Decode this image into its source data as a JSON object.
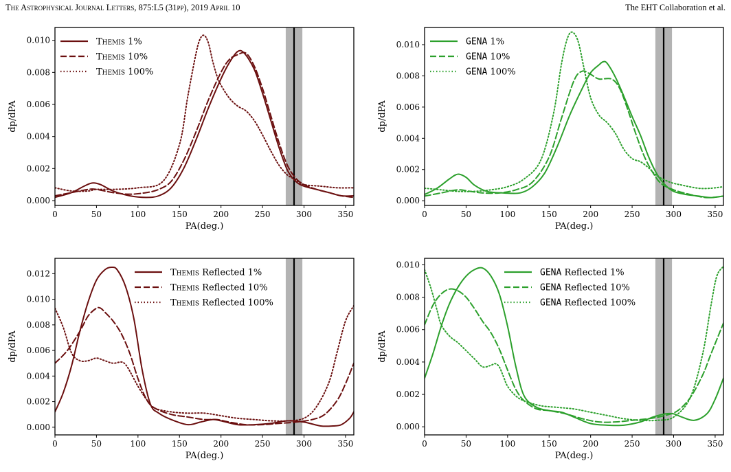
{
  "header": {
    "left": "The Astrophysical Journal Letters, 875:L5 (31pp), 2019 April 10",
    "right": "The EHT Collaboration et al."
  },
  "colors": {
    "themis": "#6b0f0f",
    "gena": "#2ca02c",
    "band": "#b3b3b3",
    "line": "#000000"
  },
  "chart_data": [
    {
      "type": "line",
      "panel": "top-left",
      "xlabel": "PA(deg.)",
      "ylabel": "dp/dPA",
      "xlim": [
        0,
        360
      ],
      "ylim": [
        -0.0003,
        0.0108
      ],
      "xticks": [
        "0",
        "50",
        "100",
        "150",
        "200",
        "250",
        "300",
        "350"
      ],
      "xtick_values": [
        0,
        50,
        100,
        150,
        200,
        250,
        300,
        350
      ],
      "yticks": [
        "0.000",
        "0.002",
        "0.004",
        "0.006",
        "0.008",
        "0.010"
      ],
      "ytick_values": [
        0,
        0.002,
        0.004,
        0.006,
        0.008,
        0.01
      ],
      "band": [
        278,
        298
      ],
      "vline": 288,
      "legend_position": "top-left",
      "series": [
        {
          "name": "Themis 1%",
          "prefix": "Themis",
          "suffix": " 1%",
          "style": "solid",
          "color": "#6b0f0f",
          "x": [
            0,
            20,
            35,
            45,
            55,
            70,
            90,
            110,
            125,
            140,
            155,
            170,
            185,
            200,
            210,
            220,
            228,
            240,
            250,
            260,
            270,
            280,
            290,
            300,
            315,
            330,
            345,
            360
          ],
          "y": [
            0.0002,
            0.0005,
            0.0009,
            0.0011,
            0.001,
            0.0006,
            0.0003,
            0.0002,
            0.0003,
            0.0008,
            0.002,
            0.0038,
            0.0058,
            0.0076,
            0.0086,
            0.0093,
            0.0092,
            0.0082,
            0.0067,
            0.005,
            0.0033,
            0.0019,
            0.0012,
            0.0009,
            0.0007,
            0.0005,
            0.0003,
            0.0003
          ]
        },
        {
          "name": "Themis 10%",
          "prefix": "Themis",
          "suffix": " 10%",
          "style": "dashed",
          "color": "#6b0f0f",
          "x": [
            0,
            20,
            40,
            50,
            70,
            90,
            110,
            125,
            140,
            155,
            170,
            185,
            200,
            210,
            220,
            230,
            240,
            250,
            260,
            270,
            280,
            290,
            300,
            315,
            330,
            345,
            360
          ],
          "y": [
            0.0003,
            0.0005,
            0.0007,
            0.0007,
            0.0005,
            0.0004,
            0.0005,
            0.0007,
            0.0012,
            0.0025,
            0.0043,
            0.0063,
            0.008,
            0.0088,
            0.0091,
            0.0092,
            0.0084,
            0.007,
            0.0053,
            0.0036,
            0.0022,
            0.0014,
            0.001,
            0.0007,
            0.0005,
            0.0003,
            0.0002
          ]
        },
        {
          "name": "Themis 100%",
          "prefix": "Themis",
          "suffix": " 100%",
          "style": "dotted",
          "color": "#6b0f0f",
          "x": [
            0,
            20,
            40,
            50,
            70,
            100,
            130,
            150,
            160,
            170,
            175,
            180,
            185,
            190,
            195,
            200,
            210,
            220,
            230,
            240,
            250,
            260,
            270,
            280,
            290,
            300,
            320,
            340,
            360
          ],
          "y": [
            0.0008,
            0.0006,
            0.0006,
            0.0007,
            0.0007,
            0.0008,
            0.0012,
            0.0035,
            0.0065,
            0.0092,
            0.0101,
            0.0103,
            0.0098,
            0.0087,
            0.0078,
            0.0072,
            0.0064,
            0.0059,
            0.0056,
            0.005,
            0.0041,
            0.0031,
            0.0022,
            0.0016,
            0.0013,
            0.001,
            0.0009,
            0.0008,
            0.0008
          ]
        }
      ]
    },
    {
      "type": "line",
      "panel": "top-right",
      "xlabel": "PA(deg.)",
      "ylabel": "dp/dPA",
      "xlim": [
        0,
        360
      ],
      "ylim": [
        -0.0003,
        0.0111
      ],
      "xticks": [
        "0",
        "50",
        "100",
        "150",
        "200",
        "250",
        "300",
        "350"
      ],
      "xtick_values": [
        0,
        50,
        100,
        150,
        200,
        250,
        300,
        350
      ],
      "yticks": [
        "0.000",
        "0.002",
        "0.004",
        "0.006",
        "0.008",
        "0.010"
      ],
      "ytick_values": [
        0,
        0.002,
        0.004,
        0.006,
        0.008,
        0.01
      ],
      "band": [
        278,
        298
      ],
      "vline": 288,
      "legend_position": "top-left",
      "series": [
        {
          "name": "GENA 1%",
          "prefix": "GENA",
          "suffix": " 1%",
          "style": "solid",
          "color": "#2ca02c",
          "x": [
            0,
            15,
            30,
            40,
            50,
            60,
            75,
            95,
            115,
            130,
            145,
            160,
            175,
            190,
            200,
            210,
            215,
            220,
            230,
            240,
            250,
            260,
            270,
            280,
            290,
            300,
            315,
            330,
            345,
            360
          ],
          "y": [
            0.0004,
            0.0008,
            0.0014,
            0.0017,
            0.0015,
            0.001,
            0.0006,
            0.0005,
            0.0005,
            0.0009,
            0.0018,
            0.0035,
            0.0055,
            0.0072,
            0.0082,
            0.0087,
            0.0089,
            0.0088,
            0.0079,
            0.0067,
            0.0054,
            0.0042,
            0.0028,
            0.0017,
            0.001,
            0.0006,
            0.0004,
            0.0003,
            0.0002,
            0.0003
          ]
        },
        {
          "name": "GENA 10%",
          "prefix": "GENA",
          "suffix": " 10%",
          "style": "dashed",
          "color": "#2ca02c",
          "x": [
            0,
            20,
            40,
            55,
            70,
            90,
            110,
            130,
            150,
            165,
            180,
            190,
            200,
            210,
            225,
            235,
            245,
            255,
            265,
            275,
            285,
            300,
            320,
            340,
            360
          ],
          "y": [
            0.0003,
            0.0005,
            0.0007,
            0.0006,
            0.0005,
            0.0005,
            0.0007,
            0.0012,
            0.0028,
            0.0053,
            0.0077,
            0.0083,
            0.0081,
            0.0078,
            0.0078,
            0.0072,
            0.0058,
            0.0042,
            0.0028,
            0.0018,
            0.0011,
            0.0007,
            0.0004,
            0.0002,
            0.0003
          ]
        },
        {
          "name": "GENA 100%",
          "prefix": "GENA",
          "suffix": " 100%",
          "style": "dotted",
          "color": "#2ca02c",
          "x": [
            0,
            20,
            40,
            60,
            80,
            100,
            120,
            140,
            155,
            165,
            172,
            178,
            185,
            192,
            200,
            210,
            220,
            230,
            240,
            250,
            260,
            270,
            280,
            295,
            310,
            330,
            345,
            360
          ],
          "y": [
            0.0008,
            0.0007,
            0.0006,
            0.0006,
            0.0007,
            0.0009,
            0.0014,
            0.0026,
            0.0055,
            0.0088,
            0.0104,
            0.0108,
            0.0102,
            0.0085,
            0.0066,
            0.0055,
            0.005,
            0.0043,
            0.0033,
            0.0027,
            0.0025,
            0.0021,
            0.0016,
            0.0012,
            0.001,
            0.0008,
            0.0008,
            0.0009
          ]
        }
      ]
    },
    {
      "type": "line",
      "panel": "bottom-left",
      "xlabel": "PA(deg.)",
      "ylabel": "dp/dPA",
      "xlim": [
        0,
        360
      ],
      "ylim": [
        -0.0006,
        0.0132
      ],
      "xticks": [
        "0",
        "50",
        "100",
        "150",
        "200",
        "250",
        "300",
        "350"
      ],
      "xtick_values": [
        0,
        50,
        100,
        150,
        200,
        250,
        300,
        350
      ],
      "yticks": [
        "0.000",
        "0.002",
        "0.004",
        "0.006",
        "0.008",
        "0.010",
        "0.012"
      ],
      "ytick_values": [
        0,
        0.002,
        0.004,
        0.006,
        0.008,
        0.01,
        0.012
      ],
      "band": [
        278,
        298
      ],
      "vline": 288,
      "legend_position": "top-right",
      "series": [
        {
          "name": "Themis Reflected 1%",
          "prefix": "Themis",
          "suffix": " Reflected 1%",
          "style": "solid",
          "color": "#6b0f0f",
          "x": [
            0,
            10,
            20,
            30,
            40,
            50,
            60,
            68,
            75,
            85,
            95,
            105,
            115,
            125,
            140,
            160,
            175,
            190,
            200,
            220,
            240,
            260,
            280,
            300,
            320,
            335,
            345,
            355,
            360
          ],
          "y": [
            0.0012,
            0.0027,
            0.0048,
            0.0075,
            0.0098,
            0.0115,
            0.0123,
            0.0125,
            0.0123,
            0.011,
            0.0085,
            0.0045,
            0.0018,
            0.0011,
            0.0006,
            0.0002,
            0.0004,
            0.0006,
            0.0005,
            0.0002,
            0.0002,
            0.0003,
            0.0005,
            0.0004,
            0.0001,
            0.0001,
            0.0002,
            0.0007,
            0.0012
          ]
        },
        {
          "name": "Themis Reflected 10%",
          "prefix": "Themis",
          "suffix": " Reflected 10%",
          "style": "dashed",
          "color": "#6b0f0f",
          "x": [
            0,
            15,
            30,
            40,
            50,
            55,
            60,
            70,
            80,
            90,
            100,
            110,
            120,
            140,
            160,
            180,
            195,
            210,
            230,
            250,
            270,
            290,
            310,
            325,
            340,
            350,
            360
          ],
          "y": [
            0.005,
            0.006,
            0.0075,
            0.0087,
            0.0093,
            0.0093,
            0.009,
            0.0083,
            0.0073,
            0.0058,
            0.0038,
            0.0022,
            0.0015,
            0.001,
            0.0008,
            0.0006,
            0.0006,
            0.0004,
            0.0002,
            0.0002,
            0.0003,
            0.0004,
            0.0006,
            0.001,
            0.0021,
            0.0034,
            0.005
          ]
        },
        {
          "name": "Themis Reflected 100%",
          "prefix": "Themis",
          "suffix": " Reflected 100%",
          "style": "dotted",
          "color": "#6b0f0f",
          "x": [
            0,
            10,
            20,
            30,
            40,
            50,
            60,
            70,
            80,
            85,
            90,
            100,
            110,
            120,
            140,
            160,
            180,
            200,
            220,
            240,
            260,
            280,
            300,
            315,
            330,
            340,
            350,
            360
          ],
          "y": [
            0.0093,
            0.0078,
            0.0058,
            0.0052,
            0.0052,
            0.0054,
            0.0052,
            0.005,
            0.0051,
            0.0049,
            0.0044,
            0.0032,
            0.0022,
            0.0015,
            0.0012,
            0.0011,
            0.0011,
            0.0009,
            0.0007,
            0.0006,
            0.0005,
            0.0005,
            0.0007,
            0.0016,
            0.0035,
            0.0059,
            0.0083,
            0.0095
          ]
        }
      ]
    },
    {
      "type": "line",
      "panel": "bottom-right",
      "xlabel": "PA(deg.)",
      "ylabel": "dp/dPA",
      "xlim": [
        0,
        360
      ],
      "ylim": [
        -0.0005,
        0.0104
      ],
      "xticks": [
        "0",
        "50",
        "100",
        "150",
        "200",
        "250",
        "300",
        "350"
      ],
      "xtick_values": [
        0,
        50,
        100,
        150,
        200,
        250,
        300,
        350
      ],
      "yticks": [
        "0.000",
        "0.002",
        "0.004",
        "0.006",
        "0.008",
        "0.010"
      ],
      "ytick_values": [
        0,
        0.002,
        0.004,
        0.006,
        0.008,
        0.01
      ],
      "band": [
        278,
        298
      ],
      "vline": 288,
      "legend_position": "top-right",
      "series": [
        {
          "name": "GENA Reflected 1%",
          "prefix": "GENA",
          "suffix": " Reflected 1%",
          "style": "solid",
          "color": "#2ca02c",
          "x": [
            0,
            10,
            20,
            30,
            40,
            50,
            60,
            70,
            80,
            90,
            100,
            110,
            120,
            135,
            150,
            165,
            180,
            200,
            220,
            240,
            260,
            275,
            290,
            300,
            310,
            325,
            340,
            350,
            360
          ],
          "y": [
            0.003,
            0.0045,
            0.0062,
            0.0076,
            0.0086,
            0.0093,
            0.0097,
            0.0098,
            0.0093,
            0.0082,
            0.0062,
            0.0037,
            0.0019,
            0.0012,
            0.001,
            0.0009,
            0.0006,
            0.0002,
            0.0001,
            0.0001,
            0.0003,
            0.0006,
            0.0008,
            0.0008,
            0.0006,
            0.0004,
            0.0008,
            0.0017,
            0.003
          ]
        },
        {
          "name": "GENA Reflected 10%",
          "prefix": "GENA",
          "suffix": " Reflected 10%",
          "style": "dashed",
          "color": "#2ca02c",
          "x": [
            0,
            10,
            20,
            30,
            40,
            50,
            60,
            70,
            80,
            90,
            100,
            110,
            120,
            135,
            150,
            170,
            190,
            210,
            230,
            250,
            270,
            290,
            305,
            320,
            335,
            345,
            360
          ],
          "y": [
            0.0063,
            0.0075,
            0.0082,
            0.0085,
            0.0084,
            0.008,
            0.0073,
            0.0065,
            0.0058,
            0.0048,
            0.0035,
            0.0023,
            0.0016,
            0.0011,
            0.001,
            0.0008,
            0.0005,
            0.0003,
            0.0003,
            0.0004,
            0.0005,
            0.0007,
            0.001,
            0.0018,
            0.0032,
            0.0045,
            0.0064
          ]
        },
        {
          "name": "GENA Reflected 100%",
          "prefix": "GENA",
          "suffix": " Reflected 100%",
          "style": "dotted",
          "color": "#2ca02c",
          "x": [
            0,
            8,
            15,
            20,
            30,
            40,
            50,
            60,
            70,
            80,
            85,
            90,
            95,
            100,
            110,
            120,
            140,
            160,
            180,
            200,
            220,
            240,
            260,
            280,
            300,
            320,
            335,
            345,
            352,
            360
          ],
          "y": [
            0.0097,
            0.0085,
            0.0072,
            0.0063,
            0.0056,
            0.0052,
            0.0047,
            0.0042,
            0.0037,
            0.0038,
            0.0039,
            0.0037,
            0.0031,
            0.0025,
            0.0019,
            0.0016,
            0.0013,
            0.0012,
            0.0011,
            0.0009,
            0.0007,
            0.0005,
            0.0004,
            0.0004,
            0.0006,
            0.0018,
            0.0045,
            0.0075,
            0.0093,
            0.0099
          ]
        }
      ]
    }
  ]
}
